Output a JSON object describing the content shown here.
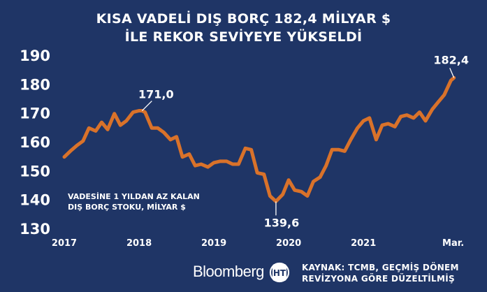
{
  "title": {
    "line1": "KISA VADELİ DIŞ BORÇ 182,4 MİLYAR $",
    "line2": "İLE REKOR SEVİYEYE YÜKSELDİ"
  },
  "footer": {
    "brand": "Bloomberg",
    "logo": "HT",
    "source_line1": "KAYNAK: TCMB, GEÇMİŞ DÖNEM",
    "source_line2": "REVİZYONA GÖRE DÜZELTİLMİŞ"
  },
  "colors": {
    "background": "#1f3566",
    "line": "#d9722a",
    "text": "#ffffff"
  },
  "chart_data": {
    "type": "line",
    "title": "KISA VADELİ DIŞ BORÇ 182,4 MİLYAR $ İLE REKOR SEVİYEYE YÜKSELDİ",
    "xlabel": "",
    "ylabel": "",
    "legend_text": [
      "VADESİNE 1 YILDAN AZ KALAN",
      "DIŞ BORÇ STOKU, MİLYAR $"
    ],
    "ylim": [
      130,
      190
    ],
    "yticks": [
      190,
      180,
      170,
      160,
      150,
      140,
      130
    ],
    "xlim": [
      2017.0,
      2022.25
    ],
    "xticks": [
      {
        "x": 2017,
        "label": "2017"
      },
      {
        "x": 2018,
        "label": "2018"
      },
      {
        "x": 2019,
        "label": "2019"
      },
      {
        "x": 2020,
        "label": "2020"
      },
      {
        "x": 2021,
        "label": "2021"
      },
      {
        "x": 2022.2,
        "label": "Mar."
      }
    ],
    "grid": false,
    "annotations": [
      {
        "label": "171,0",
        "x": 2018.04,
        "y": 171.0,
        "position": "above-right"
      },
      {
        "label": "139,6",
        "x": 2019.83,
        "y": 139.6,
        "position": "below"
      },
      {
        "label": "182,4",
        "x": 2022.21,
        "y": 182.4,
        "position": "above"
      }
    ],
    "series": [
      {
        "x": [
          2017.0,
          2017.08,
          2017.17,
          2017.25,
          2017.33,
          2017.42,
          2017.5,
          2017.58,
          2017.67,
          2017.75,
          2017.83,
          2017.92,
          2018.0,
          2018.04,
          2018.08,
          2018.17,
          2018.25,
          2018.33,
          2018.42,
          2018.5,
          2018.58,
          2018.67,
          2018.75,
          2018.83,
          2018.92,
          2019.0,
          2019.08,
          2019.17,
          2019.25,
          2019.33,
          2019.42,
          2019.5,
          2019.58,
          2019.67,
          2019.75,
          2019.83,
          2019.92,
          2020.0,
          2020.08,
          2020.17,
          2020.25,
          2020.33,
          2020.42,
          2020.5,
          2020.58,
          2020.67,
          2020.75,
          2020.83,
          2020.92,
          2021.0,
          2021.08,
          2021.17,
          2021.25,
          2021.33,
          2021.42,
          2021.5,
          2021.58,
          2021.67,
          2021.75,
          2021.83,
          2021.92,
          2022.0,
          2022.08,
          2022.17,
          2022.21
        ],
        "y": [
          155,
          157,
          159,
          160.5,
          165,
          164,
          167,
          164.5,
          170,
          166,
          167.5,
          170.5,
          171,
          171,
          170.5,
          165,
          165,
          163.5,
          161,
          162,
          155,
          156,
          152,
          152.5,
          151.5,
          153,
          153.5,
          153.5,
          152.5,
          152.5,
          158,
          157.5,
          149.5,
          149,
          141.5,
          139.6,
          142,
          147,
          143.5,
          143,
          141.5,
          146.5,
          148,
          152,
          157.5,
          157.5,
          157,
          161,
          165,
          167.5,
          168.5,
          161,
          166,
          166.5,
          165.5,
          169,
          169.5,
          168.5,
          170.5,
          167.5,
          171.5,
          174,
          176.5,
          181.5,
          182.4
        ]
      }
    ]
  }
}
